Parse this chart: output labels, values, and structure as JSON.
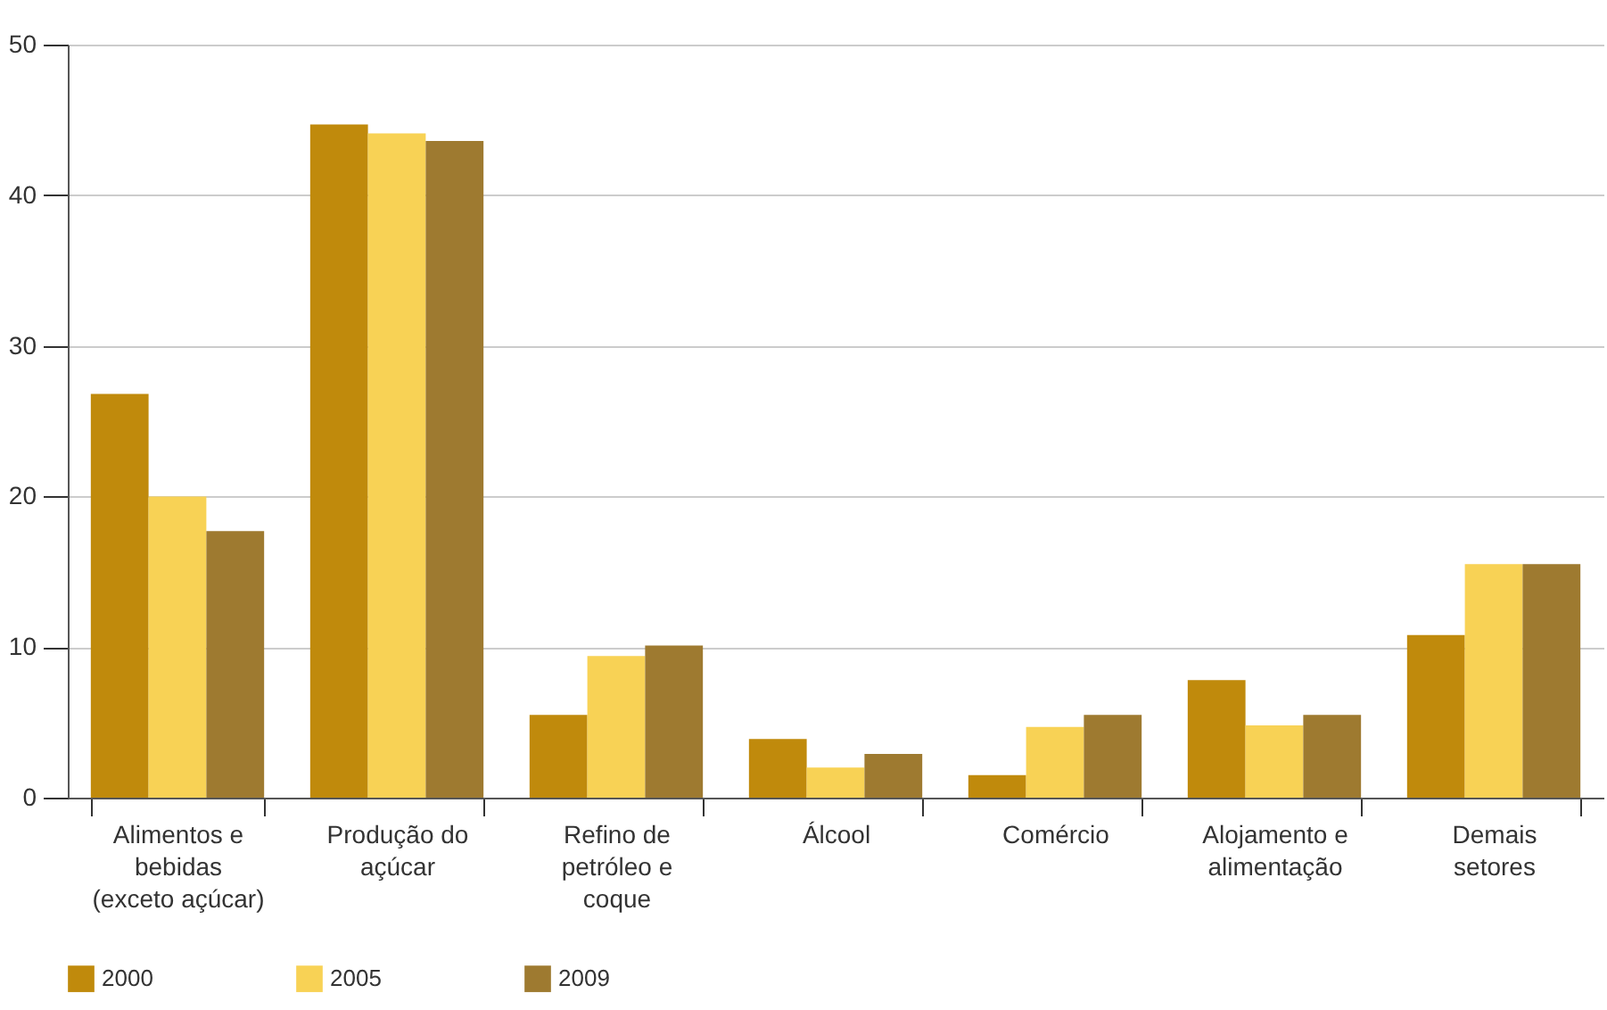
{
  "chart_data": {
    "type": "bar",
    "categories": [
      "Alimentos e\nbebidas\n(exceto açúcar)",
      "Produção do\naçúcar",
      "Refino de\npetróleo e\ncoque",
      "Álcool",
      "Comércio",
      "Alojamento e\nalimentação",
      "Demais\nsetores"
    ],
    "series": [
      {
        "name": "2000",
        "color": "#c08a0c",
        "values": [
          26.8,
          44.7,
          5.5,
          3.9,
          1.5,
          7.8,
          10.8
        ]
      },
      {
        "name": "2005",
        "color": "#f8d255",
        "values": [
          20.0,
          44.1,
          9.4,
          2.0,
          4.7,
          4.8,
          15.5
        ]
      },
      {
        "name": "2009",
        "color": "#9e7a30",
        "values": [
          17.7,
          43.6,
          10.1,
          2.9,
          5.5,
          5.5,
          15.5
        ]
      }
    ],
    "ylim": [
      0,
      50
    ],
    "yticks": [
      0,
      10,
      20,
      30,
      40,
      50
    ],
    "grid": "y",
    "legend": "bottom"
  }
}
